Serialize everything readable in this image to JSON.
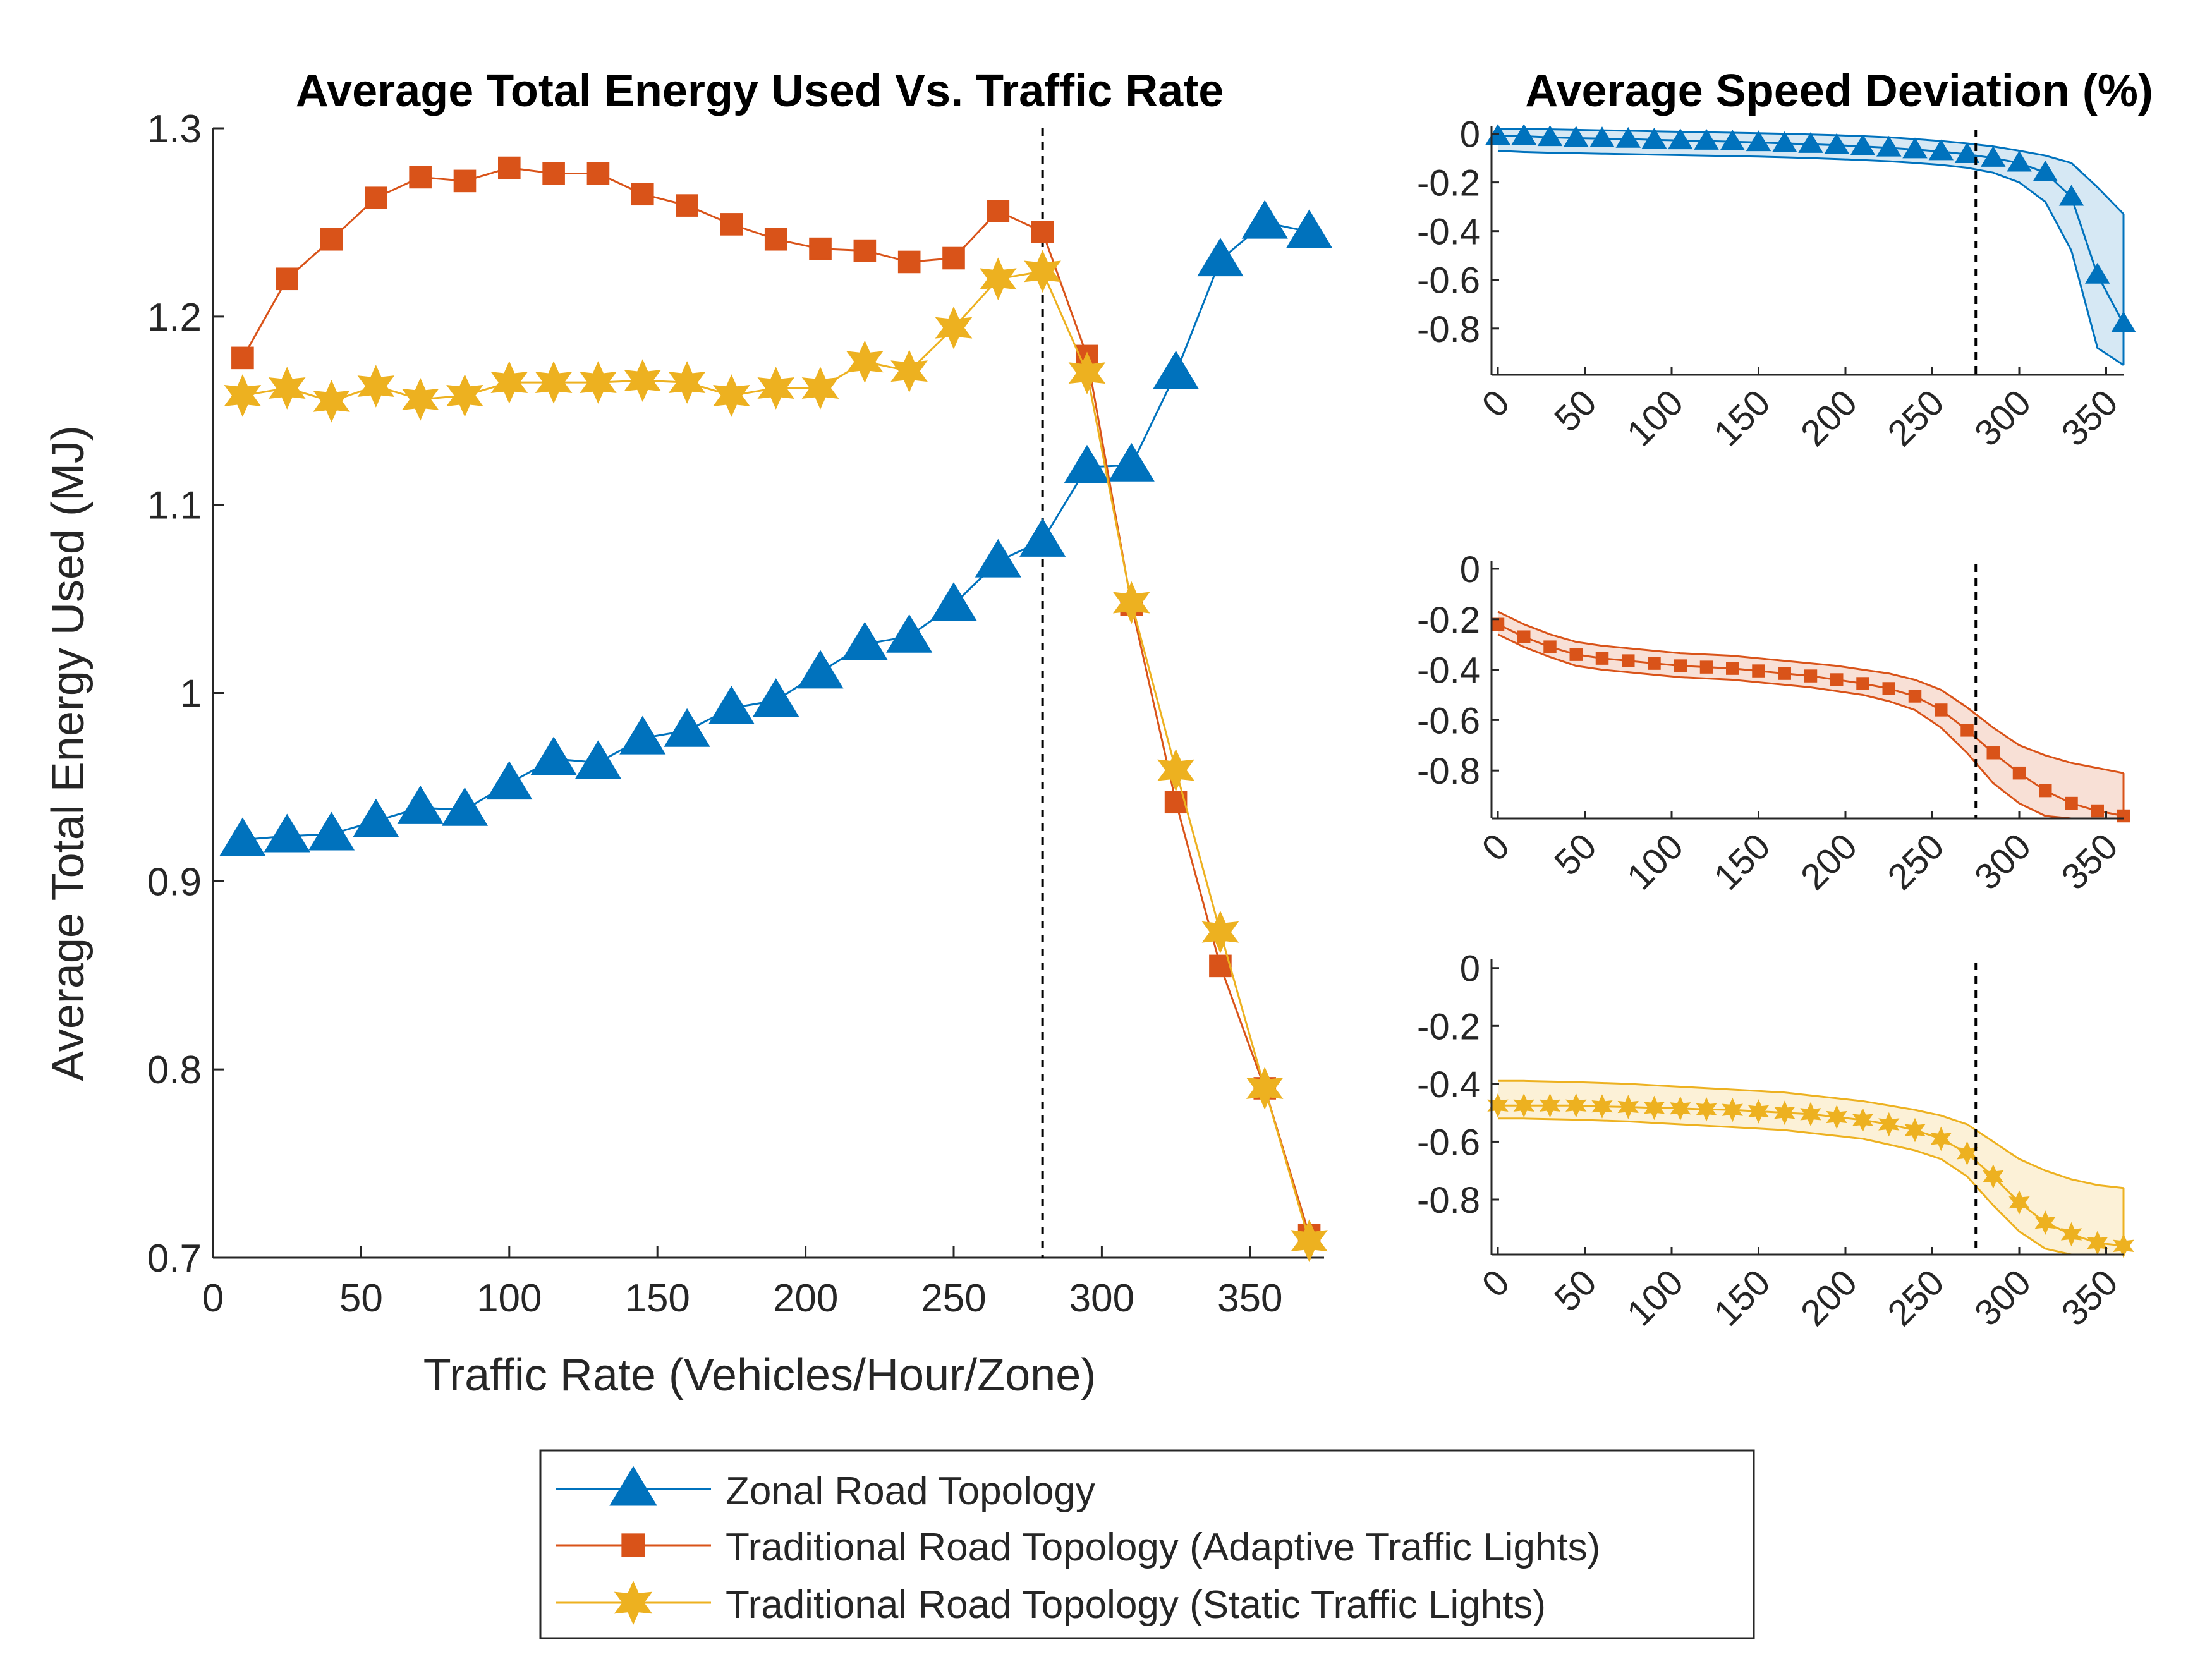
{
  "legend": {
    "zonal": "Zonal Road Topology",
    "adaptive": "Traditional Road Topology (Adaptive Traffic Lights)",
    "static": "Traditional Road Topology (Static Traffic Lights)"
  },
  "colors": {
    "zonal": "#0072BD",
    "adaptive": "#D95319",
    "static": "#EDB120",
    "axis": "#262626",
    "vline": "#000000"
  },
  "chart_data": [
    {
      "type": "line",
      "title": "Average Total Energy Used Vs. Traffic Rate",
      "xlabel": "Traffic Rate (Vehicles/Hour/Zone)",
      "ylabel": "Average Total Energy Used (MJ)",
      "xlim": [
        0,
        375
      ],
      "ylim": [
        0.7,
        1.3
      ],
      "xticks": [
        0,
        50,
        100,
        150,
        200,
        250,
        300,
        350
      ],
      "yticks": [
        0.7,
        0.8,
        0.9,
        1,
        1.1,
        1.2,
        1.3
      ],
      "ytick_labels": [
        "0.7",
        "0.8",
        "0.9",
        "1",
        "1.1",
        "1.2",
        "1.3"
      ],
      "vline_x": 280,
      "x": [
        10,
        25,
        40,
        55,
        70,
        85,
        100,
        115,
        130,
        145,
        160,
        175,
        190,
        205,
        220,
        235,
        250,
        265,
        280,
        295,
        310,
        325,
        340,
        355,
        370
      ],
      "series": [
        {
          "name": "Zonal Road Topology",
          "marker": "triangle",
          "values": [
            0.922,
            0.924,
            0.925,
            0.932,
            0.939,
            0.938,
            0.952,
            0.965,
            0.963,
            0.976,
            0.98,
            0.992,
            0.996,
            1.011,
            1.026,
            1.03,
            1.047,
            1.07,
            1.081,
            1.12,
            1.121,
            1.17,
            1.23,
            1.25,
            1.245
          ]
        },
        {
          "name": "Traditional Road Topology (Adaptive Traffic Lights)",
          "marker": "square",
          "values": [
            1.178,
            1.22,
            1.241,
            1.263,
            1.274,
            1.272,
            1.279,
            1.276,
            1.276,
            1.265,
            1.259,
            1.249,
            1.241,
            1.236,
            1.235,
            1.229,
            1.231,
            1.256,
            1.245,
            1.179,
            1.047,
            0.942,
            0.855,
            0.79,
            0.712
          ]
        },
        {
          "name": "Traditional Road Topology (Static Traffic Lights)",
          "marker": "star",
          "values": [
            1.158,
            1.162,
            1.155,
            1.163,
            1.156,
            1.158,
            1.165,
            1.165,
            1.165,
            1.166,
            1.165,
            1.158,
            1.162,
            1.162,
            1.176,
            1.171,
            1.194,
            1.22,
            1.224,
            1.17,
            1.048,
            0.959,
            0.873,
            0.79,
            0.709
          ]
        }
      ]
    },
    {
      "type": "area",
      "title": "Average Speed Deviation (%)",
      "series_name": "Zonal Road Topology",
      "marker": "triangle",
      "xlim": [
        0,
        360
      ],
      "ylim": [
        -0.99,
        0.03
      ],
      "xticks": [
        0,
        50,
        100,
        150,
        200,
        250,
        300,
        350
      ],
      "yticks": [
        0,
        -0.2,
        -0.4,
        -0.6,
        -0.8
      ],
      "ytick_labels": [
        "0",
        "-0.2",
        "-0.4",
        "-0.6",
        "-0.8"
      ],
      "vline_x": 275,
      "x": [
        0,
        15,
        30,
        45,
        60,
        75,
        90,
        105,
        120,
        135,
        150,
        165,
        180,
        195,
        210,
        225,
        240,
        255,
        270,
        285,
        300,
        315,
        330,
        345,
        360
      ],
      "mean": [
        -0.01,
        -0.01,
        -0.015,
        -0.018,
        -0.02,
        -0.022,
        -0.025,
        -0.028,
        -0.03,
        -0.033,
        -0.036,
        -0.04,
        -0.043,
        -0.047,
        -0.052,
        -0.058,
        -0.065,
        -0.073,
        -0.085,
        -0.1,
        -0.12,
        -0.16,
        -0.26,
        -0.58,
        -0.78
      ],
      "upper": [
        0.02,
        0.02,
        0.018,
        0.016,
        0.014,
        0.012,
        0.01,
        0.008,
        0.006,
        0.004,
        0.002,
        0.0,
        -0.003,
        -0.006,
        -0.01,
        -0.015,
        -0.022,
        -0.03,
        -0.04,
        -0.052,
        -0.07,
        -0.09,
        -0.12,
        -0.22,
        -0.33
      ],
      "lower": [
        -0.07,
        -0.075,
        -0.078,
        -0.08,
        -0.082,
        -0.084,
        -0.086,
        -0.088,
        -0.09,
        -0.092,
        -0.094,
        -0.097,
        -0.1,
        -0.104,
        -0.108,
        -0.113,
        -0.12,
        -0.128,
        -0.14,
        -0.16,
        -0.2,
        -0.28,
        -0.48,
        -0.88,
        -0.95
      ]
    },
    {
      "type": "area",
      "title": "",
      "series_name": "Traditional Road Topology (Adaptive Traffic Lights)",
      "marker": "square",
      "xlim": [
        0,
        360
      ],
      "ylim": [
        -0.99,
        0.03
      ],
      "xticks": [
        0,
        50,
        100,
        150,
        200,
        250,
        300,
        350
      ],
      "yticks": [
        0,
        -0.2,
        -0.4,
        -0.6,
        -0.8
      ],
      "ytick_labels": [
        "0",
        "-0.2",
        "-0.4",
        "-0.6",
        "-0.8"
      ],
      "vline_x": 275,
      "x": [
        0,
        15,
        30,
        45,
        60,
        75,
        90,
        105,
        120,
        135,
        150,
        165,
        180,
        195,
        210,
        225,
        240,
        255,
        270,
        285,
        300,
        315,
        330,
        345,
        360
      ],
      "mean": [
        -0.22,
        -0.27,
        -0.31,
        -0.34,
        -0.355,
        -0.365,
        -0.375,
        -0.385,
        -0.39,
        -0.395,
        -0.405,
        -0.415,
        -0.425,
        -0.44,
        -0.455,
        -0.475,
        -0.505,
        -0.56,
        -0.64,
        -0.73,
        -0.81,
        -0.88,
        -0.93,
        -0.96,
        -0.98
      ],
      "upper": [
        -0.17,
        -0.22,
        -0.26,
        -0.29,
        -0.305,
        -0.315,
        -0.325,
        -0.335,
        -0.34,
        -0.345,
        -0.355,
        -0.365,
        -0.375,
        -0.385,
        -0.4,
        -0.415,
        -0.44,
        -0.48,
        -0.55,
        -0.63,
        -0.7,
        -0.74,
        -0.77,
        -0.79,
        -0.81
      ],
      "lower": [
        -0.26,
        -0.31,
        -0.35,
        -0.385,
        -0.4,
        -0.41,
        -0.42,
        -0.43,
        -0.435,
        -0.44,
        -0.45,
        -0.46,
        -0.47,
        -0.485,
        -0.5,
        -0.525,
        -0.56,
        -0.63,
        -0.73,
        -0.85,
        -0.93,
        -0.98,
        -0.99,
        -0.99,
        -0.99
      ]
    },
    {
      "type": "area",
      "title": "",
      "series_name": "Traditional Road Topology (Static Traffic Lights)",
      "marker": "star",
      "xlim": [
        0,
        360
      ],
      "ylim": [
        -0.99,
        0.03
      ],
      "xticks": [
        0,
        50,
        100,
        150,
        200,
        250,
        300,
        350
      ],
      "yticks": [
        0,
        -0.2,
        -0.4,
        -0.6,
        -0.8
      ],
      "ytick_labels": [
        "0",
        "-0.2",
        "-0.4",
        "-0.6",
        "-0.8"
      ],
      "vline_x": 275,
      "x": [
        0,
        15,
        30,
        45,
        60,
        75,
        90,
        105,
        120,
        135,
        150,
        165,
        180,
        195,
        210,
        225,
        240,
        255,
        270,
        285,
        300,
        315,
        330,
        345,
        360
      ],
      "mean": [
        -0.475,
        -0.475,
        -0.475,
        -0.475,
        -0.478,
        -0.48,
        -0.483,
        -0.485,
        -0.488,
        -0.49,
        -0.495,
        -0.5,
        -0.505,
        -0.515,
        -0.525,
        -0.54,
        -0.56,
        -0.59,
        -0.64,
        -0.72,
        -0.81,
        -0.88,
        -0.92,
        -0.95,
        -0.96
      ],
      "upper": [
        -0.39,
        -0.39,
        -0.392,
        -0.394,
        -0.397,
        -0.4,
        -0.405,
        -0.41,
        -0.415,
        -0.42,
        -0.425,
        -0.43,
        -0.44,
        -0.45,
        -0.46,
        -0.475,
        -0.49,
        -0.51,
        -0.54,
        -0.6,
        -0.66,
        -0.7,
        -0.73,
        -0.75,
        -0.76
      ],
      "lower": [
        -0.52,
        -0.52,
        -0.522,
        -0.524,
        -0.527,
        -0.53,
        -0.535,
        -0.54,
        -0.545,
        -0.55,
        -0.555,
        -0.56,
        -0.57,
        -0.58,
        -0.59,
        -0.61,
        -0.63,
        -0.66,
        -0.72,
        -0.82,
        -0.91,
        -0.97,
        -0.99,
        -0.99,
        -0.99
      ]
    }
  ]
}
